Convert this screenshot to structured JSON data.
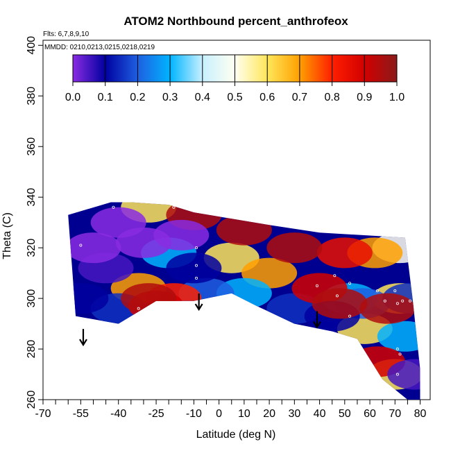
{
  "chart_data": {
    "type": "heatmap",
    "title": "ATOM2 Northbound percent_anthrofeox",
    "annotation_flights": "Flts: 6,7,8,9,10",
    "annotation_dates": "MMDD: 0210,0213,0215,0218,0219",
    "xlabel": "Latitude (deg N)",
    "ylabel": "Theta (C)",
    "xlim": [
      -70,
      84
    ],
    "ylim": [
      260,
      402
    ],
    "x_ticks": [
      -70,
      -55,
      -40,
      -25,
      -10,
      0,
      10,
      20,
      30,
      40,
      50,
      60,
      70,
      80
    ],
    "x_minor_ticks": [
      -65,
      -60,
      -50,
      -45,
      -35,
      -30,
      -20,
      -15,
      -5,
      5,
      15,
      25,
      35,
      45,
      55,
      65,
      75
    ],
    "y_ticks": [
      260,
      280,
      300,
      320,
      340,
      360,
      380,
      400
    ],
    "grid": false,
    "colorbar": {
      "range": [
        0.0,
        1.0
      ],
      "ticks": [
        "0.0",
        "0.1",
        "0.2",
        "0.3",
        "0.4",
        "0.5",
        "0.6",
        "0.7",
        "0.8",
        "0.9",
        "1.0"
      ],
      "colors": [
        "#8a2be2",
        "#0000a0",
        "#1e5fe0",
        "#00b4ff",
        "#c8f0ff",
        "#fffff0",
        "#ffe65a",
        "#ffa000",
        "#ff1e00",
        "#d20000",
        "#8b1a1a"
      ]
    },
    "domain_outline": [
      [
        -60,
        333
      ],
      [
        -43,
        338
      ],
      [
        -35,
        338
      ],
      [
        -20,
        337
      ],
      [
        -10,
        334
      ],
      [
        20,
        329
      ],
      [
        40,
        326
      ],
      [
        74,
        324
      ],
      [
        77,
        300
      ],
      [
        80,
        272
      ],
      [
        80,
        260
      ],
      [
        75,
        260
      ],
      [
        65,
        268
      ],
      [
        55,
        284
      ],
      [
        45,
        287
      ],
      [
        30,
        290
      ],
      [
        15,
        297
      ],
      [
        5,
        302
      ],
      [
        -10,
        299
      ],
      [
        -25,
        299
      ],
      [
        -40,
        290
      ],
      [
        -57,
        293
      ]
    ],
    "field_points": [
      {
        "lat": -50,
        "theta": 320,
        "value": 0.0
      },
      {
        "lat": -40,
        "theta": 330,
        "value": 0.0
      },
      {
        "lat": -30,
        "theta": 322,
        "value": 0.0
      },
      {
        "lat": -15,
        "theta": 325,
        "value": 0.0
      },
      {
        "lat": -45,
        "theta": 312,
        "value": 0.05
      },
      {
        "lat": -55,
        "theta": 300,
        "value": 0.1
      },
      {
        "lat": -10,
        "theta": 312,
        "value": 0.1
      },
      {
        "lat": -40,
        "theta": 296,
        "value": 0.15
      },
      {
        "lat": -5,
        "theta": 302,
        "value": 0.2
      },
      {
        "lat": -20,
        "theta": 318,
        "value": 0.3
      },
      {
        "lat": -28,
        "theta": 300,
        "value": 0.95
      },
      {
        "lat": -25,
        "theta": 297,
        "value": 0.9
      },
      {
        "lat": -18,
        "theta": 300,
        "value": 0.8
      },
      {
        "lat": -32,
        "theta": 304,
        "value": 0.7
      },
      {
        "lat": -28,
        "theta": 336,
        "value": 0.6
      },
      {
        "lat": -10,
        "theta": 333,
        "value": 0.95
      },
      {
        "lat": 10,
        "theta": 327,
        "value": 0.95
      },
      {
        "lat": 30,
        "theta": 320,
        "value": 0.95
      },
      {
        "lat": 5,
        "theta": 316,
        "value": 0.6
      },
      {
        "lat": 20,
        "theta": 310,
        "value": 0.7
      },
      {
        "lat": 40,
        "theta": 304,
        "value": 0.9
      },
      {
        "lat": 50,
        "theta": 318,
        "value": 0.85
      },
      {
        "lat": 62,
        "theta": 318,
        "value": 0.7
      },
      {
        "lat": 72,
        "theta": 320,
        "value": 0.5
      },
      {
        "lat": 10,
        "theta": 302,
        "value": 0.3
      },
      {
        "lat": 30,
        "theta": 296,
        "value": 0.15
      },
      {
        "lat": 45,
        "theta": 293,
        "value": 0.1
      },
      {
        "lat": 48,
        "theta": 298,
        "value": 0.95
      },
      {
        "lat": 52,
        "theta": 300,
        "value": 0.3
      },
      {
        "lat": 57,
        "theta": 298,
        "value": 0.2
      },
      {
        "lat": 58,
        "theta": 288,
        "value": 0.6
      },
      {
        "lat": 63,
        "theta": 275,
        "value": 0.9
      },
      {
        "lat": 67,
        "theta": 296,
        "value": 0.95
      },
      {
        "lat": 72,
        "theta": 300,
        "value": 0.6
      },
      {
        "lat": 74,
        "theta": 285,
        "value": 0.3
      },
      {
        "lat": 76,
        "theta": 300,
        "value": 0.15
      },
      {
        "lat": 78,
        "theta": 270,
        "value": 0.05
      },
      {
        "lat": 70,
        "theta": 270,
        "value": 0.6
      }
    ],
    "sample_points": [
      [
        -55,
        321
      ],
      [
        -56,
        292
      ],
      [
        -32,
        296
      ],
      [
        -22,
        298
      ],
      [
        -8,
        298
      ],
      [
        -9,
        308
      ],
      [
        -9,
        313
      ],
      [
        -9,
        320
      ],
      [
        -42,
        336
      ],
      [
        -18,
        336
      ],
      [
        39,
        305
      ],
      [
        46,
        309
      ],
      [
        47,
        301
      ],
      [
        52,
        306
      ],
      [
        52,
        293
      ],
      [
        63,
        303
      ],
      [
        66,
        299
      ],
      [
        70,
        303
      ],
      [
        71,
        298
      ],
      [
        73,
        299
      ],
      [
        71,
        280
      ],
      [
        72,
        278
      ],
      [
        71,
        270
      ],
      [
        76,
        299
      ]
    ],
    "arrows": [
      {
        "lat": -54,
        "theta": 283
      },
      {
        "lat": -8,
        "theta": 297
      },
      {
        "lat": 39,
        "theta": 290
      }
    ]
  }
}
